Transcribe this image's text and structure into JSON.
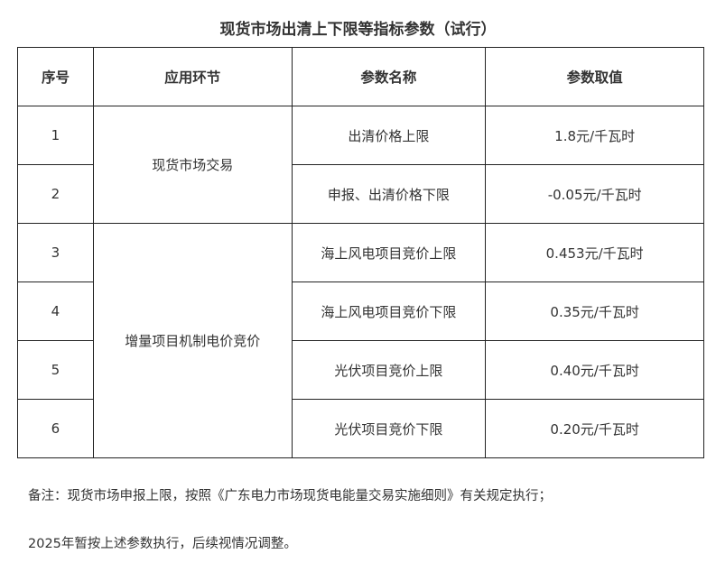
{
  "title": "现货市场出清上下限等指标参数（试行）",
  "table": {
    "headers": [
      "序号",
      "应用环节",
      "参数名称",
      "参数取值"
    ],
    "groups": [
      "现货市场交易",
      "增量项目机制电价竞价"
    ],
    "rows": [
      {
        "no": "1",
        "name": "出清价格上限",
        "value": "1.8元/千瓦时"
      },
      {
        "no": "2",
        "name": "申报、出清价格下限",
        "value": "-0.05元/千瓦时"
      },
      {
        "no": "3",
        "name": "海上风电项目竞价上限",
        "value": "0.453元/千瓦时"
      },
      {
        "no": "4",
        "name": "海上风电项目竞价下限",
        "value": "0.35元/千瓦时"
      },
      {
        "no": "5",
        "name": "光伏项目竞价上限",
        "value": "0.40元/千瓦时"
      },
      {
        "no": "6",
        "name": "光伏项目竞价下限",
        "value": "0.20元/千瓦时"
      }
    ]
  },
  "notes": [
    "备注：现货市场申报上限，按照《广东电力市场现货电能量交易实施细则》有关规定执行；",
    "2025年暂按上述参数执行，后续视情况调整。"
  ]
}
